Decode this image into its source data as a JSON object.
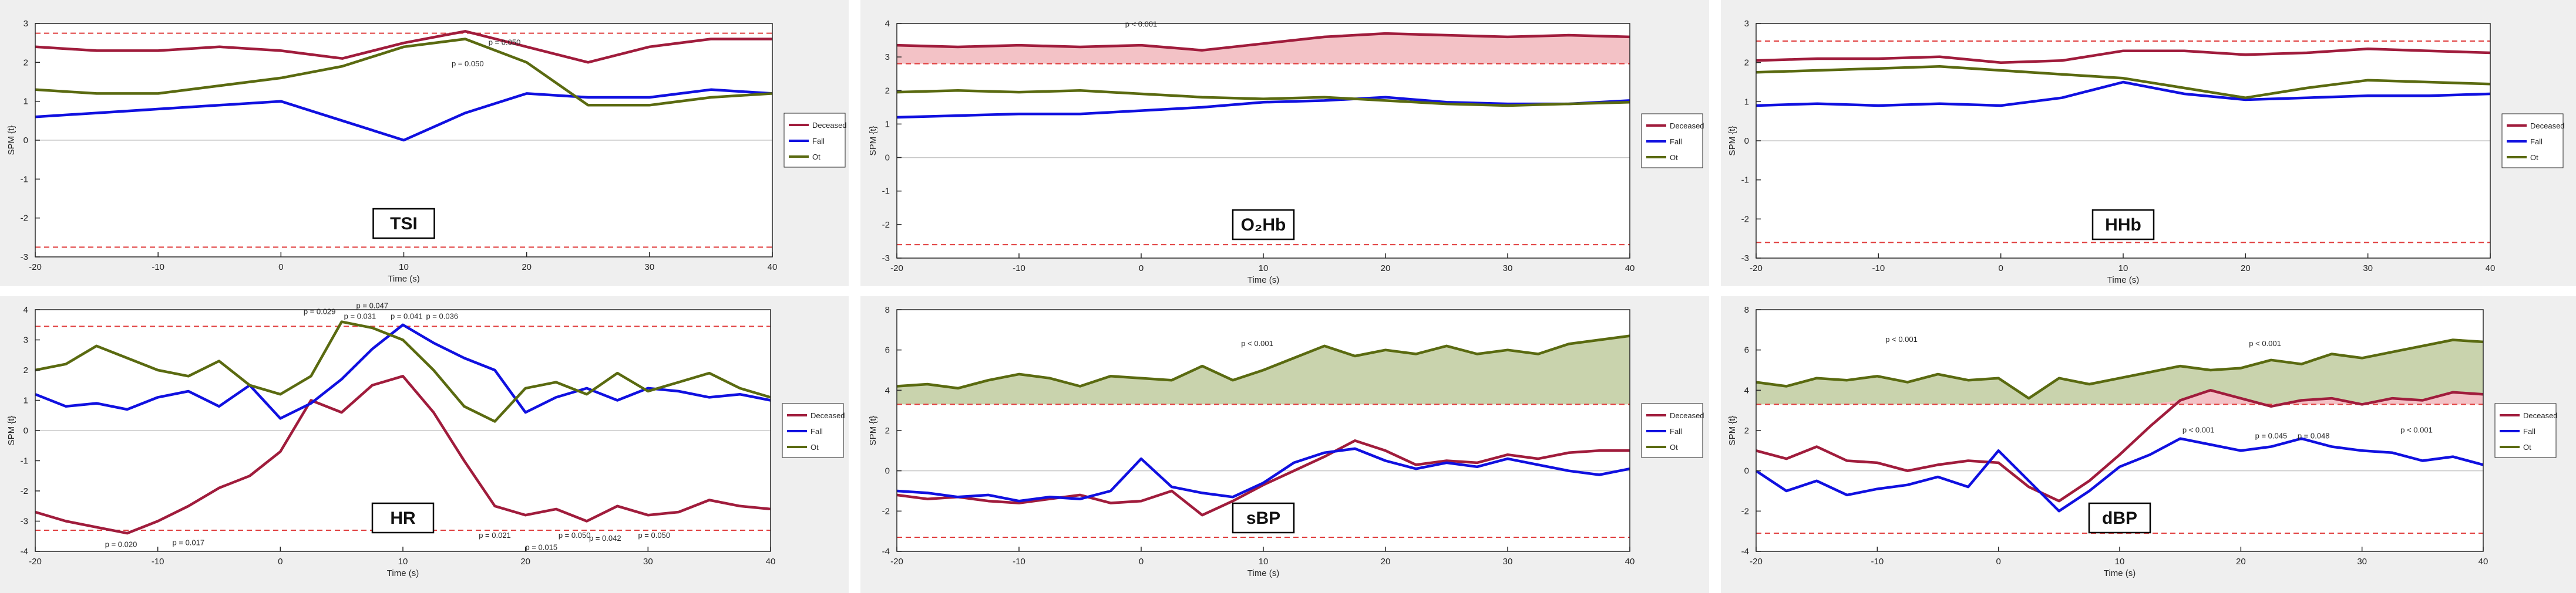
{
  "colors": {
    "deceased": "#a01c3c",
    "fall": "#1010e0",
    "ot": "#5a6a10",
    "threshold": "#e03c3c",
    "shade_red": "#f3c2c6",
    "shade_green": "#c9d3ad",
    "panel_bg": "#efefef",
    "plot_bg": "#ffffff"
  },
  "chart_data": [
    {
      "type": "line",
      "panel_label": "TSI",
      "xlabel": "Time (s)",
      "ylabel": "SPM {t}",
      "xlim": [
        -20,
        40
      ],
      "ylim": [
        -3,
        3
      ],
      "xticks": [
        "-20",
        "-10",
        "0",
        "10",
        "20",
        "30",
        "40"
      ],
      "yticks": [
        "-3",
        "-2",
        "-1",
        "0",
        "1",
        "2",
        "3"
      ],
      "thresholds": [
        2.75,
        -2.75
      ],
      "legend": [
        "Deceased",
        "Fall",
        "Ot"
      ],
      "legend_position": "right",
      "shaded": "none",
      "x": [
        -20,
        -15,
        -10,
        -5,
        0,
        5,
        10,
        15,
        20,
        25,
        30,
        35,
        40
      ],
      "series": [
        {
          "name": "Deceased",
          "color_key": "deceased",
          "values": [
            2.4,
            2.3,
            2.3,
            2.4,
            2.3,
            2.1,
            2.5,
            2.8,
            2.4,
            2.0,
            2.4,
            2.6,
            2.6
          ]
        },
        {
          "name": "Fall",
          "color_key": "fall",
          "values": [
            0.6,
            0.7,
            0.8,
            0.9,
            1.0,
            0.5,
            0.0,
            0.7,
            1.2,
            1.1,
            1.1,
            1.3,
            1.2
          ]
        },
        {
          "name": "Ot",
          "color_key": "ot",
          "values": [
            1.3,
            1.2,
            1.2,
            1.4,
            1.6,
            1.9,
            2.4,
            2.6,
            2.0,
            0.9,
            0.9,
            1.1,
            1.2
          ]
        }
      ],
      "annotations": [
        {
          "text": "p = 0.050",
          "x": 18.2,
          "y": 2.45
        },
        {
          "text": "p = 0.050",
          "x": 15.2,
          "y": 1.9
        }
      ]
    },
    {
      "type": "line",
      "panel_label": "O₂Hb",
      "xlabel": "Time (s)",
      "ylabel": "SPM {t}",
      "xlim": [
        -20,
        40
      ],
      "ylim": [
        -3,
        4
      ],
      "xticks": [
        "-20",
        "-10",
        "0",
        "10",
        "20",
        "30",
        "40"
      ],
      "yticks": [
        "-3",
        "-2",
        "-1",
        "0",
        "1",
        "2",
        "3",
        "4"
      ],
      "thresholds": [
        2.8,
        -2.6
      ],
      "legend": [
        "Deceased",
        "Fall",
        "Ot"
      ],
      "legend_position": "right",
      "shaded": "Deceased",
      "x": [
        -20,
        -15,
        -10,
        -5,
        0,
        5,
        10,
        15,
        20,
        25,
        30,
        35,
        40
      ],
      "series": [
        {
          "name": "Deceased",
          "color_key": "deceased",
          "values": [
            3.35,
            3.3,
            3.35,
            3.3,
            3.35,
            3.2,
            3.4,
            3.6,
            3.7,
            3.65,
            3.6,
            3.65,
            3.6
          ]
        },
        {
          "name": "Fall",
          "color_key": "fall",
          "values": [
            1.2,
            1.25,
            1.3,
            1.3,
            1.4,
            1.5,
            1.65,
            1.7,
            1.8,
            1.65,
            1.6,
            1.6,
            1.7
          ]
        },
        {
          "name": "Ot",
          "color_key": "ot",
          "values": [
            1.95,
            2.0,
            1.95,
            2.0,
            1.9,
            1.8,
            1.75,
            1.8,
            1.7,
            1.6,
            1.55,
            1.6,
            1.65
          ]
        }
      ],
      "annotations": [
        {
          "text": "p < 0.001",
          "x": 0,
          "y": 3.9
        }
      ]
    },
    {
      "type": "line",
      "panel_label": "HHb",
      "xlabel": "Time (s)",
      "ylabel": "SPM {t}",
      "xlim": [
        -20,
        40
      ],
      "ylim": [
        -3,
        3
      ],
      "xticks": [
        "-20",
        "-10",
        "0",
        "10",
        "20",
        "30",
        "40"
      ],
      "yticks": [
        "-3",
        "-2",
        "-1",
        "0",
        "1",
        "2",
        "3"
      ],
      "thresholds": [
        2.55,
        -2.6
      ],
      "legend": [
        "Deceased",
        "Fall",
        "Ot"
      ],
      "legend_position": "right",
      "shaded": "none",
      "x": [
        -20,
        -15,
        -10,
        -5,
        0,
        5,
        10,
        15,
        20,
        25,
        30,
        35,
        40
      ],
      "series": [
        {
          "name": "Deceased",
          "color_key": "deceased",
          "values": [
            2.05,
            2.1,
            2.1,
            2.15,
            2.0,
            2.05,
            2.3,
            2.3,
            2.2,
            2.25,
            2.35,
            2.3,
            2.25
          ]
        },
        {
          "name": "Fall",
          "color_key": "fall",
          "values": [
            0.9,
            0.95,
            0.9,
            0.95,
            0.9,
            1.1,
            1.5,
            1.2,
            1.05,
            1.1,
            1.15,
            1.15,
            1.2
          ]
        },
        {
          "name": "Ot",
          "color_key": "ot",
          "values": [
            1.75,
            1.8,
            1.85,
            1.9,
            1.8,
            1.7,
            1.6,
            1.35,
            1.1,
            1.35,
            1.55,
            1.5,
            1.45
          ]
        }
      ],
      "annotations": []
    },
    {
      "type": "line",
      "panel_label": "HR",
      "xlabel": "Time (s)",
      "ylabel": "SPM {t}",
      "xlim": [
        -20,
        40
      ],
      "ylim": [
        -4,
        4
      ],
      "xticks": [
        "-20",
        "-10",
        "0",
        "10",
        "20",
        "30",
        "40"
      ],
      "yticks": [
        "-4",
        "-3",
        "-2",
        "-1",
        "0",
        "1",
        "2",
        "3",
        "4"
      ],
      "thresholds": [
        3.45,
        -3.3
      ],
      "legend": [
        "Deceased",
        "Fall",
        "Ot"
      ],
      "legend_position": "right",
      "shaded": "none",
      "x": [
        -20,
        -17.5,
        -15,
        -12.5,
        -10,
        -7.5,
        -5,
        -2.5,
        0,
        2.5,
        5,
        7.5,
        10,
        12.5,
        15,
        17.5,
        20,
        22.5,
        25,
        27.5,
        30,
        32.5,
        35,
        37.5,
        40
      ],
      "series": [
        {
          "name": "Deceased",
          "color_key": "deceased",
          "values": [
            -2.7,
            -3.0,
            -3.2,
            -3.4,
            -3.0,
            -2.5,
            -1.9,
            -1.5,
            -0.7,
            1.0,
            0.6,
            1.5,
            1.8,
            0.6,
            -1.0,
            -2.5,
            -2.8,
            -2.6,
            -3.0,
            -2.5,
            -2.8,
            -2.7,
            -2.3,
            -2.5,
            -2.6
          ]
        },
        {
          "name": "Fall",
          "color_key": "fall",
          "values": [
            1.2,
            0.8,
            0.9,
            0.7,
            1.1,
            1.3,
            0.8,
            1.5,
            0.4,
            0.9,
            1.7,
            2.7,
            3.5,
            2.9,
            2.4,
            2.0,
            0.6,
            1.1,
            1.4,
            1.0,
            1.4,
            1.3,
            1.1,
            1.2,
            1.0
          ]
        },
        {
          "name": "Ot",
          "color_key": "ot",
          "values": [
            2.0,
            2.2,
            2.8,
            2.4,
            2.0,
            1.8,
            2.3,
            1.5,
            1.2,
            1.8,
            3.6,
            3.4,
            3.0,
            2.0,
            0.8,
            0.3,
            1.4,
            1.6,
            1.2,
            1.9,
            1.3,
            1.6,
            1.9,
            1.4,
            1.1
          ]
        }
      ],
      "annotations": [
        {
          "text": "p = 0.029",
          "x": 3.2,
          "y": 3.85
        },
        {
          "text": "p = 0.047",
          "x": 7.5,
          "y": 4.05
        },
        {
          "text": "p = 0.031",
          "x": 6.5,
          "y": 3.7
        },
        {
          "text": "p = 0.041",
          "x": 10.3,
          "y": 3.7
        },
        {
          "text": "p = 0.036",
          "x": 13.2,
          "y": 3.7
        },
        {
          "text": "p = 0.020",
          "x": -13.0,
          "y": -3.85
        },
        {
          "text": "p = 0.017",
          "x": -7.5,
          "y": -3.8
        },
        {
          "text": "p = 0.021",
          "x": 17.5,
          "y": -3.55
        },
        {
          "text": "p = 0.050",
          "x": 24.0,
          "y": -3.55
        },
        {
          "text": "p = 0.015",
          "x": 21.3,
          "y": -3.95
        },
        {
          "text": "p = 0.042",
          "x": 26.5,
          "y": -3.65
        },
        {
          "text": "p = 0.050",
          "x": 30.5,
          "y": -3.55
        }
      ]
    },
    {
      "type": "line",
      "panel_label": "sBP",
      "xlabel": "Time (s)",
      "ylabel": "SPM {t}",
      "xlim": [
        -20,
        40
      ],
      "ylim": [
        -4,
        8
      ],
      "xticks": [
        "-20",
        "-10",
        "0",
        "10",
        "20",
        "30",
        "40"
      ],
      "yticks": [
        "-4",
        "-2",
        "0",
        "2",
        "4",
        "6",
        "8"
      ],
      "thresholds": [
        3.3,
        -3.3
      ],
      "legend": [
        "Deceased",
        "Fall",
        "Ot"
      ],
      "legend_position": "right",
      "shaded": "Ot",
      "x": [
        -20,
        -17.5,
        -15,
        -12.5,
        -10,
        -7.5,
        -5,
        -2.5,
        0,
        2.5,
        5,
        7.5,
        10,
        12.5,
        15,
        17.5,
        20,
        22.5,
        25,
        27.5,
        30,
        32.5,
        35,
        37.5,
        40
      ],
      "series": [
        {
          "name": "Deceased",
          "color_key": "deceased",
          "values": [
            -1.2,
            -1.4,
            -1.3,
            -1.5,
            -1.6,
            -1.4,
            -1.2,
            -1.6,
            -1.5,
            -1.0,
            -2.2,
            -1.5,
            -0.7,
            0.0,
            0.7,
            1.5,
            1.0,
            0.3,
            0.5,
            0.4,
            0.8,
            0.6,
            0.9,
            1.0,
            1.0
          ]
        },
        {
          "name": "Fall",
          "color_key": "fall",
          "values": [
            -1.0,
            -1.1,
            -1.3,
            -1.2,
            -1.5,
            -1.3,
            -1.4,
            -1.0,
            0.6,
            -0.8,
            -1.1,
            -1.3,
            -0.6,
            0.4,
            0.9,
            1.1,
            0.5,
            0.1,
            0.4,
            0.2,
            0.6,
            0.3,
            0.0,
            -0.2,
            0.1
          ]
        },
        {
          "name": "Ot",
          "color_key": "ot",
          "values": [
            4.2,
            4.3,
            4.1,
            4.5,
            4.8,
            4.6,
            4.2,
            4.7,
            4.6,
            4.5,
            5.2,
            4.5,
            5.0,
            5.6,
            6.2,
            5.7,
            6.0,
            5.8,
            6.2,
            5.8,
            6.0,
            5.8,
            6.3,
            6.5,
            6.7
          ]
        }
      ],
      "annotations": [
        {
          "text": "p < 0.001",
          "x": 9.5,
          "y": 6.2
        }
      ]
    },
    {
      "type": "line",
      "panel_label": "dBP",
      "xlabel": "Time (s)",
      "ylabel": "SPM {t}",
      "xlim": [
        -20,
        40
      ],
      "ylim": [
        -4,
        8
      ],
      "xticks": [
        "-20",
        "-10",
        "0",
        "10",
        "20",
        "30",
        "40"
      ],
      "yticks": [
        "-4",
        "-2",
        "0",
        "2",
        "4",
        "6",
        "8"
      ],
      "thresholds": [
        3.3,
        -3.1
      ],
      "legend": [
        "Deceased",
        "Fall",
        "Ot"
      ],
      "legend_position": "right",
      "shaded": "Deceased+Ot",
      "x": [
        -20,
        -17.5,
        -15,
        -12.5,
        -10,
        -7.5,
        -5,
        -2.5,
        0,
        2.5,
        5,
        7.5,
        10,
        12.5,
        15,
        17.5,
        20,
        22.5,
        25,
        27.5,
        30,
        32.5,
        35,
        37.5,
        40
      ],
      "series": [
        {
          "name": "Deceased",
          "color_key": "deceased",
          "values": [
            1.0,
            0.6,
            1.2,
            0.5,
            0.4,
            0.0,
            0.3,
            0.5,
            0.4,
            -0.8,
            -1.5,
            -0.5,
            0.8,
            2.2,
            3.5,
            4.0,
            3.6,
            3.2,
            3.5,
            3.6,
            3.3,
            3.6,
            3.5,
            3.9,
            3.8
          ]
        },
        {
          "name": "Fall",
          "color_key": "fall",
          "values": [
            0.0,
            -1.0,
            -0.5,
            -1.2,
            -0.9,
            -0.7,
            -0.3,
            -0.8,
            1.0,
            -0.5,
            -2.0,
            -1.0,
            0.2,
            0.8,
            1.6,
            1.3,
            1.0,
            1.2,
            1.6,
            1.2,
            1.0,
            0.9,
            0.5,
            0.7,
            0.3
          ]
        },
        {
          "name": "Ot",
          "color_key": "ot",
          "values": [
            4.4,
            4.2,
            4.6,
            4.5,
            4.7,
            4.4,
            4.8,
            4.5,
            4.6,
            3.6,
            4.6,
            4.3,
            4.6,
            4.9,
            5.2,
            5.0,
            5.1,
            5.5,
            5.3,
            5.8,
            5.6,
            5.9,
            6.2,
            6.5,
            6.4
          ]
        }
      ],
      "annotations": [
        {
          "text": "p < 0.001",
          "x": -8.0,
          "y": 6.4
        },
        {
          "text": "p < 0.001",
          "x": 22.0,
          "y": 6.2
        },
        {
          "text": "p < 0.001",
          "x": 16.5,
          "y": 1.9
        },
        {
          "text": "p = 0.045",
          "x": 22.5,
          "y": 1.6
        },
        {
          "text": "p = 0.048",
          "x": 26.0,
          "y": 1.6
        },
        {
          "text": "p < 0.001",
          "x": 34.5,
          "y": 1.9
        }
      ]
    }
  ]
}
